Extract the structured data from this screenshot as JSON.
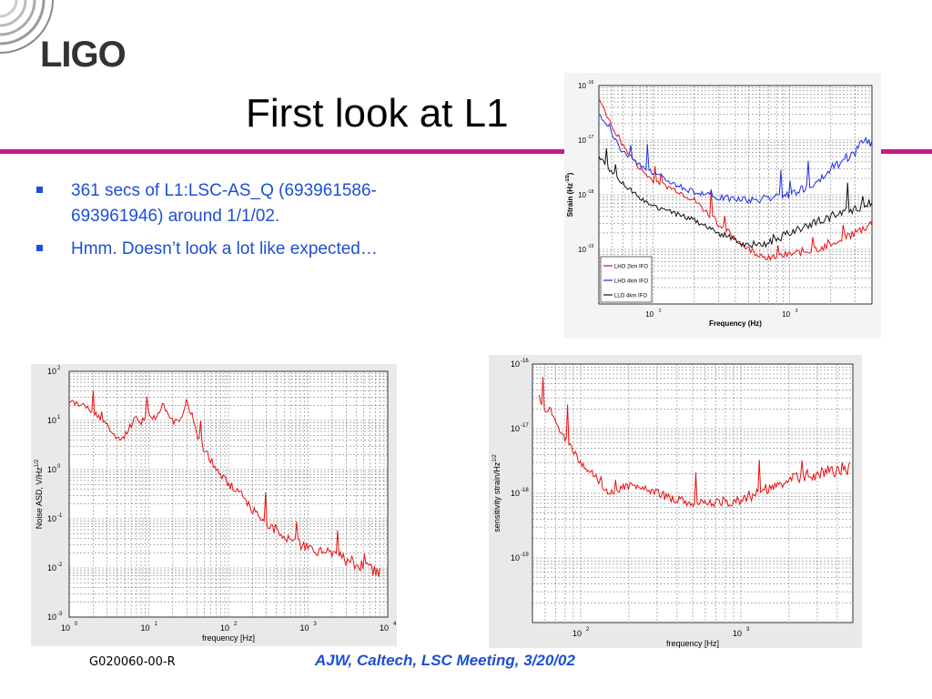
{
  "slide": {
    "logo_text": "LIGO",
    "title": "First look at L1",
    "bullets": [
      "361 secs of L1:LSC-AS_Q (693961586-693961946) around 1/1/02.",
      "Hmm. Doesn’t look a lot like expected…"
    ],
    "footer_code": "G020060-00-R",
    "footer_credit": "AJW, Caltech, LSC Meeting, 3/20/02",
    "accent_color": "#c21b8a",
    "text_color": "#1d4fd6"
  },
  "chart_data": [
    {
      "type": "line",
      "chart": "top-right",
      "xscale": "log",
      "yscale": "log",
      "xlim": [
        40,
        4000
      ],
      "ylim": [
        1e-20,
        1e-16
      ],
      "xlabel": "Frequency (Hz)",
      "ylabel": "Strain (Hz",
      "ylabel_sup": "-1/2",
      "ylabel_close": ")",
      "xticks": [
        {
          "base": "10",
          "exp": "2",
          "v": 100
        },
        {
          "base": "10",
          "exp": "3",
          "v": 1000
        }
      ],
      "yticks": [
        {
          "base": "10",
          "exp": "-16",
          "v": 1e-16
        },
        {
          "base": "10",
          "exp": "-17",
          "v": 1e-17
        },
        {
          "base": "10",
          "exp": "-18",
          "v": 1e-18
        },
        {
          "base": "10",
          "exp": "-19",
          "v": 1e-19
        }
      ],
      "grid": true,
      "legend_position": "bottom-left",
      "series": [
        {
          "name": "LHO 2km IFO",
          "color": "#e81010",
          "x": [
            40,
            45,
            50,
            60,
            80,
            100,
            150,
            200,
            300,
            500,
            700,
            1000,
            1500,
            2000,
            3000,
            4000
          ],
          "y": [
            6e-17,
            3e-17,
            1.8e-17,
            8e-18,
            3e-18,
            1.8e-18,
            1.2e-18,
            8e-19,
            3e-19,
            1e-19,
            7e-20,
            8e-20,
            1e-19,
            1.3e-19,
            2e-19,
            3e-19
          ]
        },
        {
          "name": "LHO 4km IFO",
          "color": "#1f2ee8",
          "x": [
            40,
            45,
            50,
            60,
            80,
            100,
            150,
            200,
            300,
            500,
            700,
            1000,
            1500,
            2000,
            3000,
            3500,
            4000
          ],
          "y": [
            3e-17,
            2e-17,
            1.3e-17,
            6e-18,
            3.5e-18,
            2.5e-18,
            1.5e-18,
            1.1e-18,
            9e-19,
            8e-19,
            8.5e-19,
            1e-18,
            1.5e-18,
            3e-18,
            6e-18,
            1.1e-17,
            9e-18
          ]
        },
        {
          "name": "LLO 4km IFO",
          "color": "#111111",
          "x": [
            40,
            45,
            50,
            60,
            80,
            100,
            150,
            200,
            300,
            500,
            700,
            1000,
            1500,
            2000,
            3000,
            4000
          ],
          "y": [
            5e-18,
            3.5e-18,
            2.5e-18,
            1.6e-18,
            9e-19,
            6e-19,
            4.5e-19,
            3.5e-19,
            2e-19,
            1.2e-19,
            1.3e-19,
            2e-19,
            3e-19,
            4e-19,
            5.5e-19,
            7e-19
          ]
        }
      ]
    },
    {
      "type": "line",
      "chart": "bottom-left",
      "xscale": "log",
      "yscale": "log",
      "xlim": [
        1,
        10000
      ],
      "ylim": [
        0.001,
        100
      ],
      "xlabel": "frequency [Hz]",
      "ylabel": "Noise ASD, V/Hz",
      "ylabel_sup": "1/2",
      "xticks": [
        {
          "base": "10",
          "exp": "0",
          "v": 1
        },
        {
          "base": "10",
          "exp": "1",
          "v": 10
        },
        {
          "base": "10",
          "exp": "2",
          "v": 100
        },
        {
          "base": "10",
          "exp": "3",
          "v": 1000
        },
        {
          "base": "10",
          "exp": "4",
          "v": 10000
        }
      ],
      "yticks": [
        {
          "base": "10",
          "exp": "2",
          "v": 100
        },
        {
          "base": "10",
          "exp": "1",
          "v": 10
        },
        {
          "base": "10",
          "exp": "0",
          "v": 1
        },
        {
          "base": "10",
          "exp": "-1",
          "v": 0.1
        },
        {
          "base": "10",
          "exp": "-2",
          "v": 0.01
        },
        {
          "base": "10",
          "exp": "-3",
          "v": 0.001
        }
      ],
      "grid": true,
      "series": [
        {
          "color": "#e81010",
          "x": [
            1,
            1.5,
            2,
            3,
            4,
            5,
            7,
            8,
            10,
            12,
            15,
            18,
            20,
            25,
            30,
            33,
            35,
            40,
            50,
            70,
            100,
            150,
            200,
            300,
            500,
            1000,
            2000,
            4000,
            6000,
            8000
          ],
          "y": [
            25,
            20,
            15,
            8,
            4,
            5,
            12,
            9,
            15,
            10,
            20,
            12,
            10,
            10,
            30,
            14,
            12,
            5,
            2.5,
            1,
            0.5,
            0.3,
            0.15,
            0.08,
            0.04,
            0.025,
            0.02,
            0.012,
            0.01,
            0.007
          ]
        }
      ]
    },
    {
      "type": "line",
      "chart": "bottom-right",
      "xscale": "log",
      "yscale": "log",
      "xlim": [
        50,
        5000
      ],
      "ylim": [
        1e-20,
        1e-16
      ],
      "xlabel": "frequency [Hz]",
      "ylabel": "sensitivity strain/Hz",
      "ylabel_sup": "1/2",
      "xticks": [
        {
          "base": "10",
          "exp": "2",
          "v": 100
        },
        {
          "base": "10",
          "exp": "3",
          "v": 1000
        }
      ],
      "yticks": [
        {
          "base": "10",
          "exp": "-16",
          "v": 1e-16
        },
        {
          "base": "10",
          "exp": "-17",
          "v": 1e-17
        },
        {
          "base": "10",
          "exp": "-18",
          "v": 1e-18
        },
        {
          "base": "10",
          "exp": "-19",
          "v": 1e-19
        }
      ],
      "grid": true,
      "series": [
        {
          "color": "#e81010",
          "x": [
            55,
            60,
            65,
            70,
            80,
            100,
            120,
            150,
            200,
            250,
            300,
            400,
            500,
            700,
            1000,
            1500,
            2000,
            3000,
            4800
          ],
          "y": [
            3e-17,
            2e-17,
            2e-17,
            1.2e-17,
            7e-18,
            3e-18,
            2e-18,
            1e-18,
            1.3e-18,
            1.2e-18,
            1e-18,
            8e-19,
            7e-19,
            7e-19,
            8e-19,
            1.2e-18,
            1.6e-18,
            2e-18,
            2.5e-18
          ]
        }
      ]
    }
  ]
}
